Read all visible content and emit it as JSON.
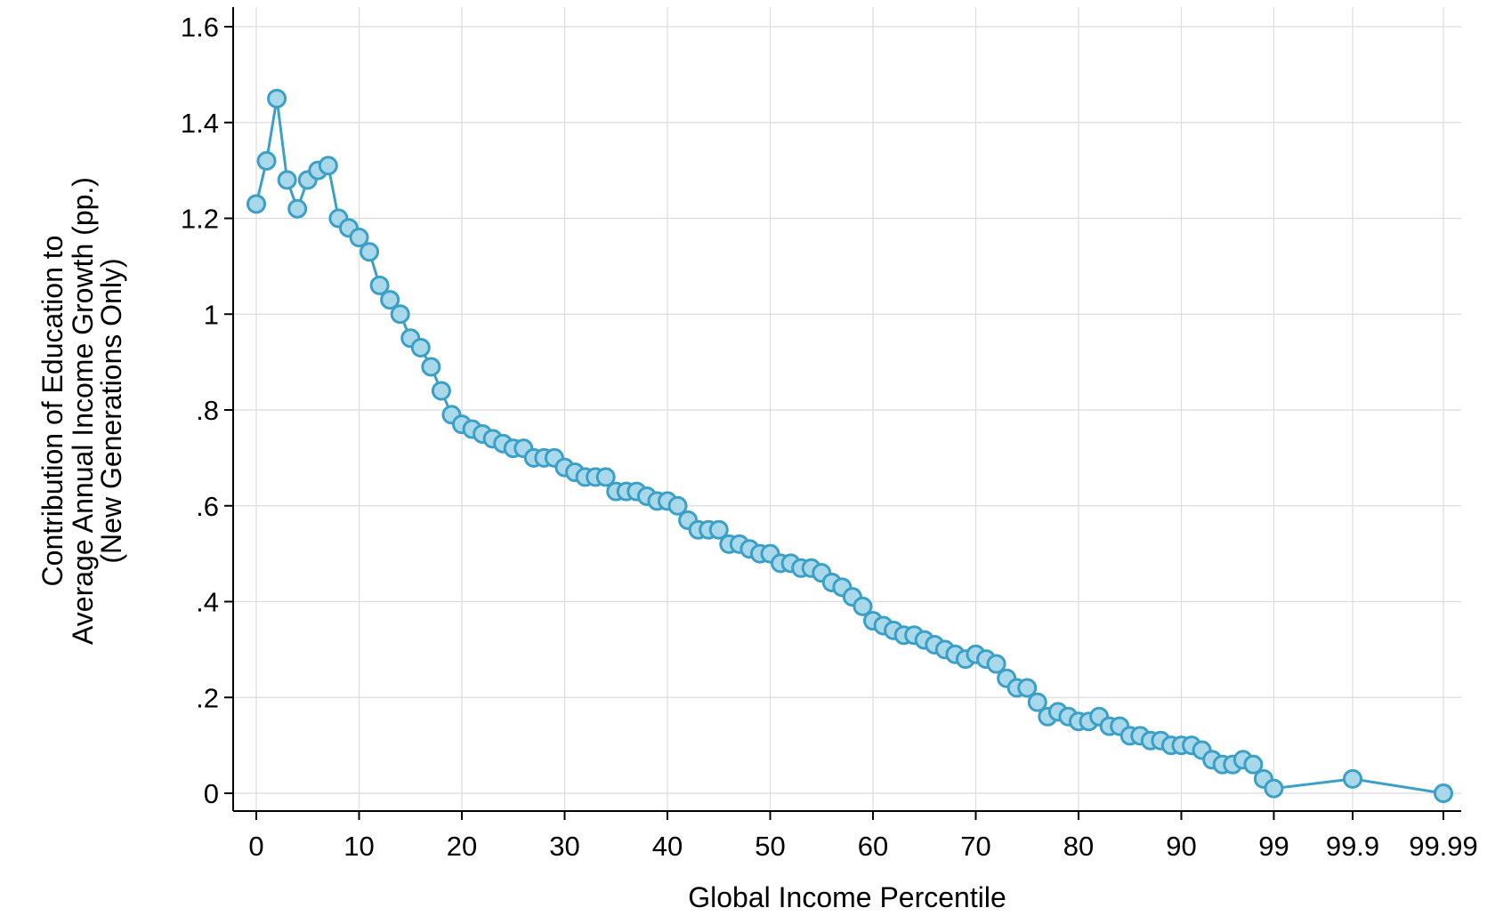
{
  "chart_data": {
    "type": "line",
    "xlabel": "Global Income Percentile",
    "ylabel_lines": [
      "Contribution of Education to",
      "Average Annual Income Growth (pp.)",
      "(New Generations Only)"
    ],
    "ylim": [
      0,
      1.6
    ],
    "yticks": [
      0,
      0.2,
      0.4,
      0.6,
      0.8,
      1.0,
      1.2,
      1.4,
      1.6
    ],
    "ytick_labels": [
      "0",
      ".2",
      ".4",
      ".6",
      ".8",
      "1",
      "1.2",
      "1.4",
      "1.6"
    ],
    "xtick_labels": [
      "0",
      "10",
      "20",
      "30",
      "40",
      "50",
      "60",
      "70",
      "80",
      "90",
      "99",
      "99.9",
      "99.99"
    ],
    "grid": true,
    "series_color": "#3aa0c8",
    "marker_fill": "#a9d8ea",
    "series": [
      {
        "points": [
          {
            "x": "0",
            "y": 1.23
          },
          {
            "x": "1",
            "y": 1.32
          },
          {
            "x": "2",
            "y": 1.45
          },
          {
            "x": "3",
            "y": 1.28
          },
          {
            "x": "4",
            "y": 1.22
          },
          {
            "x": "5",
            "y": 1.28
          },
          {
            "x": "6",
            "y": 1.3
          },
          {
            "x": "7",
            "y": 1.31
          },
          {
            "x": "8",
            "y": 1.2
          },
          {
            "x": "9",
            "y": 1.18
          },
          {
            "x": "10",
            "y": 1.16
          },
          {
            "x": "11",
            "y": 1.13
          },
          {
            "x": "12",
            "y": 1.06
          },
          {
            "x": "13",
            "y": 1.03
          },
          {
            "x": "14",
            "y": 1.0
          },
          {
            "x": "15",
            "y": 0.95
          },
          {
            "x": "16",
            "y": 0.93
          },
          {
            "x": "17",
            "y": 0.89
          },
          {
            "x": "18",
            "y": 0.84
          },
          {
            "x": "19",
            "y": 0.79
          },
          {
            "x": "20",
            "y": 0.77
          },
          {
            "x": "21",
            "y": 0.76
          },
          {
            "x": "22",
            "y": 0.75
          },
          {
            "x": "23",
            "y": 0.74
          },
          {
            "x": "24",
            "y": 0.73
          },
          {
            "x": "25",
            "y": 0.72
          },
          {
            "x": "26",
            "y": 0.72
          },
          {
            "x": "27",
            "y": 0.7
          },
          {
            "x": "28",
            "y": 0.7
          },
          {
            "x": "29",
            "y": 0.7
          },
          {
            "x": "30",
            "y": 0.68
          },
          {
            "x": "31",
            "y": 0.67
          },
          {
            "x": "32",
            "y": 0.66
          },
          {
            "x": "33",
            "y": 0.66
          },
          {
            "x": "34",
            "y": 0.66
          },
          {
            "x": "35",
            "y": 0.63
          },
          {
            "x": "36",
            "y": 0.63
          },
          {
            "x": "37",
            "y": 0.63
          },
          {
            "x": "38",
            "y": 0.62
          },
          {
            "x": "39",
            "y": 0.61
          },
          {
            "x": "40",
            "y": 0.61
          },
          {
            "x": "41",
            "y": 0.6
          },
          {
            "x": "42",
            "y": 0.57
          },
          {
            "x": "43",
            "y": 0.55
          },
          {
            "x": "44",
            "y": 0.55
          },
          {
            "x": "45",
            "y": 0.55
          },
          {
            "x": "46",
            "y": 0.52
          },
          {
            "x": "47",
            "y": 0.52
          },
          {
            "x": "48",
            "y": 0.51
          },
          {
            "x": "49",
            "y": 0.5
          },
          {
            "x": "50",
            "y": 0.5
          },
          {
            "x": "51",
            "y": 0.48
          },
          {
            "x": "52",
            "y": 0.48
          },
          {
            "x": "53",
            "y": 0.47
          },
          {
            "x": "54",
            "y": 0.47
          },
          {
            "x": "55",
            "y": 0.46
          },
          {
            "x": "56",
            "y": 0.44
          },
          {
            "x": "57",
            "y": 0.43
          },
          {
            "x": "58",
            "y": 0.41
          },
          {
            "x": "59",
            "y": 0.39
          },
          {
            "x": "60",
            "y": 0.36
          },
          {
            "x": "61",
            "y": 0.35
          },
          {
            "x": "62",
            "y": 0.34
          },
          {
            "x": "63",
            "y": 0.33
          },
          {
            "x": "64",
            "y": 0.33
          },
          {
            "x": "65",
            "y": 0.32
          },
          {
            "x": "66",
            "y": 0.31
          },
          {
            "x": "67",
            "y": 0.3
          },
          {
            "x": "68",
            "y": 0.29
          },
          {
            "x": "69",
            "y": 0.28
          },
          {
            "x": "70",
            "y": 0.29
          },
          {
            "x": "71",
            "y": 0.28
          },
          {
            "x": "72",
            "y": 0.27
          },
          {
            "x": "73",
            "y": 0.24
          },
          {
            "x": "74",
            "y": 0.22
          },
          {
            "x": "75",
            "y": 0.22
          },
          {
            "x": "76",
            "y": 0.19
          },
          {
            "x": "77",
            "y": 0.16
          },
          {
            "x": "78",
            "y": 0.17
          },
          {
            "x": "79",
            "y": 0.16
          },
          {
            "x": "80",
            "y": 0.15
          },
          {
            "x": "81",
            "y": 0.15
          },
          {
            "x": "82",
            "y": 0.16
          },
          {
            "x": "83",
            "y": 0.14
          },
          {
            "x": "84",
            "y": 0.14
          },
          {
            "x": "85",
            "y": 0.12
          },
          {
            "x": "86",
            "y": 0.12
          },
          {
            "x": "87",
            "y": 0.11
          },
          {
            "x": "88",
            "y": 0.11
          },
          {
            "x": "89",
            "y": 0.1
          },
          {
            "x": "90",
            "y": 0.1
          },
          {
            "x": "91",
            "y": 0.1
          },
          {
            "x": "92",
            "y": 0.09
          },
          {
            "x": "93",
            "y": 0.07
          },
          {
            "x": "94",
            "y": 0.06
          },
          {
            "x": "95",
            "y": 0.06
          },
          {
            "x": "96",
            "y": 0.07
          },
          {
            "x": "97",
            "y": 0.06
          },
          {
            "x": "98",
            "y": 0.03
          },
          {
            "x": "99",
            "y": 0.01
          },
          {
            "x": "99.9",
            "y": 0.03
          },
          {
            "x": "99.99",
            "y": 0.0
          }
        ]
      }
    ]
  }
}
